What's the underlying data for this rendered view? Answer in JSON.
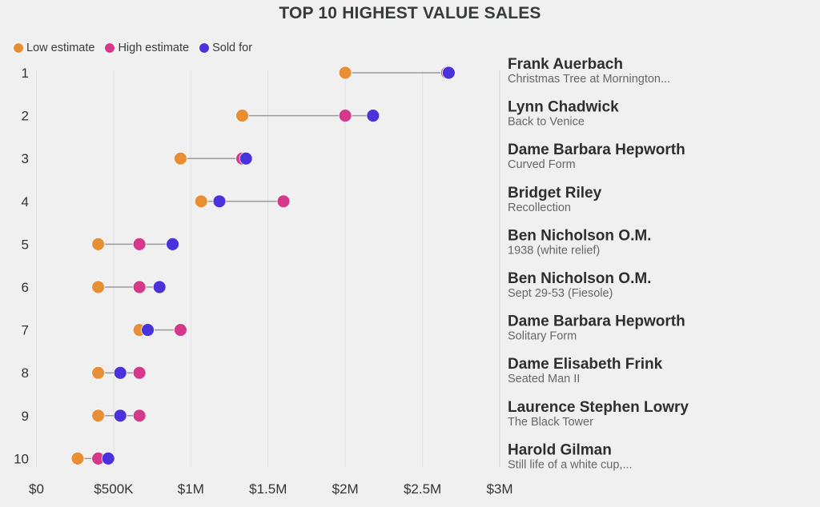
{
  "chart_data": {
    "type": "dumbbell",
    "title": "TOP 10 HIGHEST VALUE SALES",
    "xlabel": "",
    "ylabel": "",
    "xlim": [
      0,
      3000000
    ],
    "x_ticks": [
      0,
      500000,
      1000000,
      1500000,
      2000000,
      2500000,
      3000000
    ],
    "x_tick_labels": [
      "$0",
      "$500K",
      "$1M",
      "$1.5M",
      "$2M",
      "$2.5M",
      "$3M"
    ],
    "grid": "vertical",
    "legend_position": "top-left",
    "legend": [
      {
        "key": "low",
        "label": "Low estimate",
        "color": "#e88e34"
      },
      {
        "key": "high",
        "label": "High estimate",
        "color": "#d4398a"
      },
      {
        "key": "sold",
        "label": "Sold for",
        "color": "#4a32dd"
      }
    ],
    "connector_color": "#9a9a9a",
    "rows": [
      {
        "rank": "1",
        "artist": "Frank Auerbach",
        "work": "Christmas Tree at Mornington...",
        "low": 2000000,
        "high": 2660000,
        "sold": 2670000
      },
      {
        "rank": "2",
        "artist": "Lynn Chadwick",
        "work": "Back to Venice",
        "low": 1333000,
        "high": 2000000,
        "sold": 2180000
      },
      {
        "rank": "3",
        "artist": "Dame Barbara Hepworth",
        "work": "Curved Form",
        "low": 933000,
        "high": 1333000,
        "sold": 1357000
      },
      {
        "rank": "4",
        "artist": "Bridget Riley",
        "work": "Recollection",
        "low": 1067000,
        "high": 1600000,
        "sold": 1185000
      },
      {
        "rank": "5",
        "artist": "Ben Nicholson O.M.",
        "work": "1938 (white relief)",
        "low": 400000,
        "high": 667000,
        "sold": 882000
      },
      {
        "rank": "6",
        "artist": "Ben Nicholson O.M.",
        "work": "Sept 29-53 (Fiesole)",
        "low": 400000,
        "high": 667000,
        "sold": 797000
      },
      {
        "rank": "7",
        "artist": "Dame Barbara Hepworth",
        "work": "Solitary Form",
        "low": 667000,
        "high": 933000,
        "sold": 721000
      },
      {
        "rank": "8",
        "artist": "Dame Elisabeth Frink",
        "work": "Seated Man II",
        "low": 400000,
        "high": 667000,
        "sold": 543000
      },
      {
        "rank": "9",
        "artist": "Laurence Stephen Lowry",
        "work": "The Black Tower",
        "low": 400000,
        "high": 667000,
        "sold": 543000
      },
      {
        "rank": "10",
        "artist": "Harold Gilman",
        "work": "Still life of a white cup,...",
        "low": 267000,
        "high": 400000,
        "sold": 465000
      }
    ]
  }
}
